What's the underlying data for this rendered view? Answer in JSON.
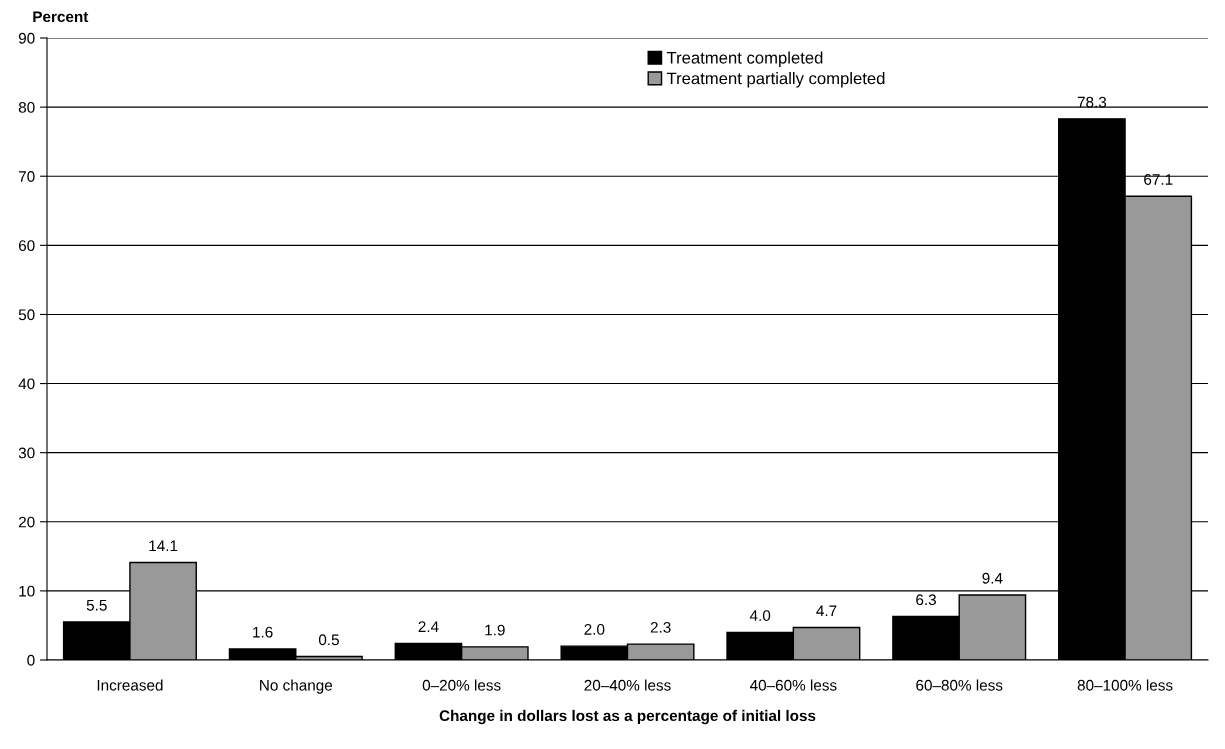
{
  "chart_data": {
    "type": "bar",
    "ylabel": "Percent",
    "xlabel": "Change in dollars lost as a percentage of initial loss",
    "categories": [
      "Increased",
      "No change",
      "0–20% less",
      "20–40% less",
      "40–60% less",
      "60–80% less",
      "80–100% less"
    ],
    "series": [
      {
        "name": "Treatment completed",
        "color": "#000000",
        "values": [
          5.5,
          1.6,
          2.4,
          2.0,
          4.0,
          6.3,
          78.3
        ],
        "value_labels": [
          "5.5",
          "1.6",
          "2.4",
          "2.0",
          "4.0",
          "6.3",
          "78.3"
        ]
      },
      {
        "name": "Treatment partially completed",
        "color": "#999999",
        "values": [
          14.1,
          0.5,
          1.9,
          2.3,
          4.7,
          9.4,
          67.1
        ],
        "value_labels": [
          "14.1",
          "0.5",
          "1.9",
          "2.3",
          "4.7",
          "9.4",
          "67.1"
        ]
      }
    ],
    "ylim": [
      0,
      90
    ],
    "yticks": [
      0,
      10,
      20,
      30,
      40,
      50,
      60,
      70,
      80,
      90
    ],
    "grid": "y",
    "legend": "top"
  }
}
